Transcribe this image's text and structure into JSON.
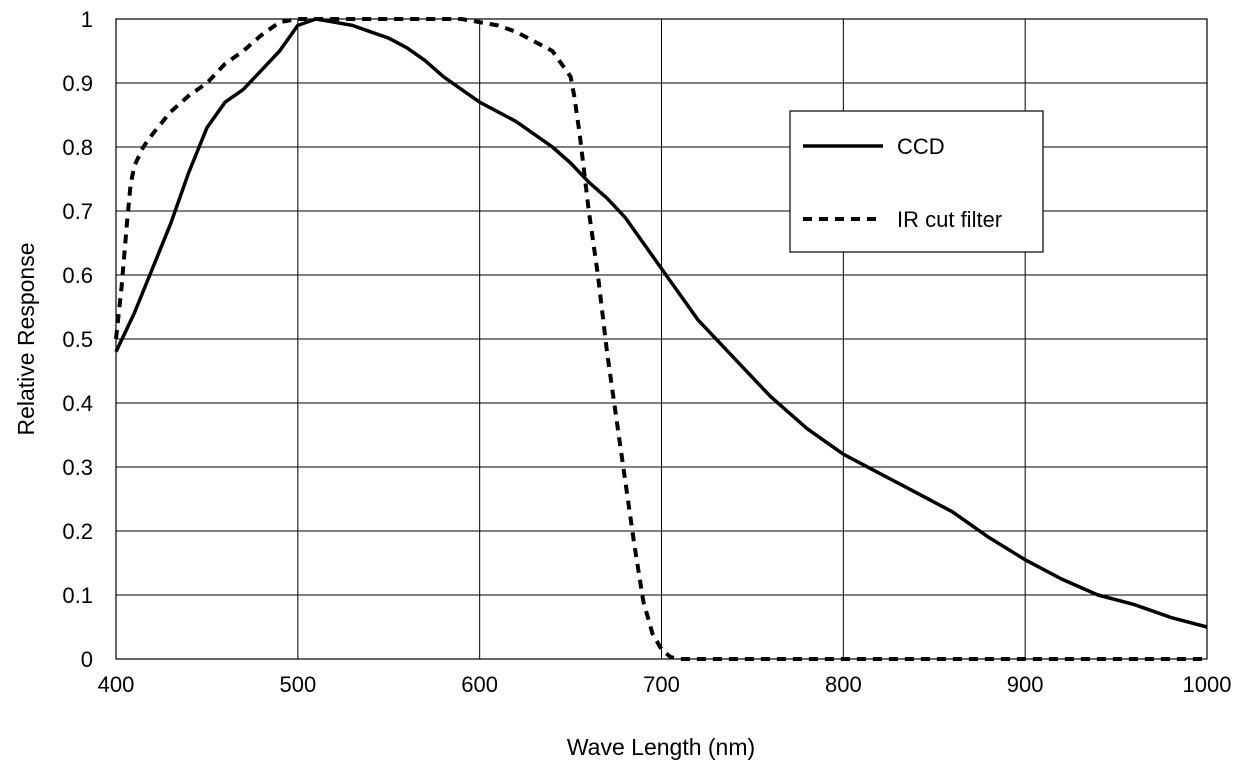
{
  "chart_data": {
    "type": "line",
    "title": "",
    "xlabel": "Wave Length (nm)",
    "ylabel": "Relative Response",
    "xlim": [
      400,
      1000
    ],
    "ylim": [
      0,
      1
    ],
    "grid": true,
    "legend_placement": "top-right",
    "x_ticks": [
      "400",
      "500",
      "600",
      "700",
      "800",
      "900",
      "1000"
    ],
    "y_ticks": [
      "0",
      "0.1",
      "0.2",
      "0.3",
      "0.4",
      "0.5",
      "0.6",
      "0.7",
      "0.8",
      "0.9",
      "1"
    ],
    "series": [
      {
        "name": "CCD",
        "style": "solid",
        "color": "#000000",
        "x": [
          400,
          410,
          420,
          430,
          440,
          450,
          460,
          470,
          480,
          490,
          500,
          510,
          520,
          530,
          540,
          550,
          560,
          570,
          580,
          590,
          600,
          620,
          640,
          650,
          660,
          670,
          680,
          690,
          700,
          720,
          740,
          760,
          780,
          800,
          820,
          840,
          860,
          880,
          900,
          920,
          940,
          960,
          980,
          1000
        ],
        "y": [
          0.48,
          0.54,
          0.61,
          0.68,
          0.76,
          0.83,
          0.87,
          0.89,
          0.92,
          0.95,
          0.99,
          1.0,
          0.995,
          0.99,
          0.98,
          0.97,
          0.955,
          0.935,
          0.91,
          0.89,
          0.87,
          0.84,
          0.8,
          0.775,
          0.745,
          0.72,
          0.69,
          0.65,
          0.61,
          0.53,
          0.47,
          0.41,
          0.36,
          0.32,
          0.29,
          0.26,
          0.23,
          0.19,
          0.155,
          0.125,
          0.1,
          0.085,
          0.065,
          0.05
        ]
      },
      {
        "name": "IR cut filter",
        "style": "dashed",
        "color": "#000000",
        "x": [
          400,
          403,
          406,
          408,
          410,
          415,
          420,
          430,
          440,
          450,
          460,
          470,
          480,
          490,
          500,
          520,
          560,
          590,
          600,
          610,
          620,
          630,
          640,
          645,
          650,
          652,
          655,
          660,
          665,
          670,
          675,
          680,
          685,
          690,
          695,
          700,
          705,
          710,
          720,
          800,
          900,
          1000
        ],
        "y": [
          0.5,
          0.58,
          0.68,
          0.74,
          0.77,
          0.8,
          0.82,
          0.855,
          0.88,
          0.9,
          0.93,
          0.95,
          0.975,
          0.995,
          1.0,
          1.0,
          1.0,
          1.0,
          0.995,
          0.99,
          0.98,
          0.965,
          0.95,
          0.93,
          0.91,
          0.88,
          0.82,
          0.7,
          0.6,
          0.48,
          0.38,
          0.28,
          0.18,
          0.09,
          0.04,
          0.015,
          0.003,
          0.0,
          0.0,
          0.0,
          0.0,
          0.0
        ]
      }
    ]
  }
}
